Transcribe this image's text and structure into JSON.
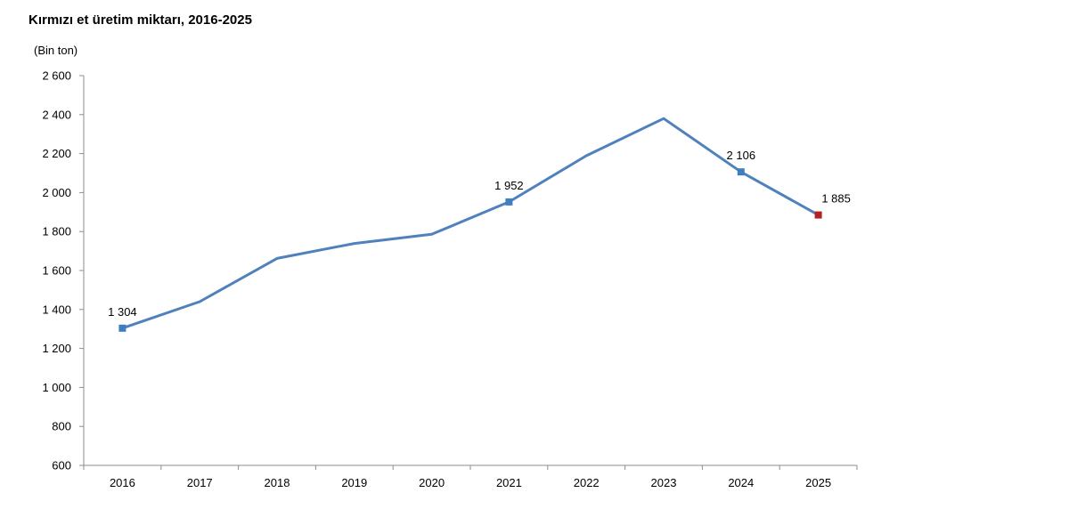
{
  "chart_data": {
    "type": "line",
    "title": "Kırmızı et üretim miktarı, 2016-2025",
    "ylabel": "(Bin ton)",
    "xlabel": "",
    "categories": [
      "2016",
      "2017",
      "2018",
      "2019",
      "2020",
      "2021",
      "2022",
      "2023",
      "2024",
      "2025"
    ],
    "series": [
      {
        "values": [
          1304,
          1440,
          1662,
          1739,
          1786,
          1952,
          2189,
          2380,
          2106,
          1885
        ],
        "color": "#4f81bd"
      }
    ],
    "ylim": [
      600,
      2600
    ],
    "yticks": [
      600,
      800,
      1000,
      1200,
      1400,
      1600,
      1800,
      2000,
      2200,
      2400,
      2600
    ],
    "ytick_labels": [
      "600",
      "800",
      "1 000",
      "1 200",
      "1 400",
      "1 600",
      "1 800",
      "2 000",
      "2 200",
      "2 400",
      "2 600"
    ],
    "data_labels": [
      {
        "category": "2016",
        "text": "1 304"
      },
      {
        "category": "2021",
        "text": "1 952"
      },
      {
        "category": "2024",
        "text": "2 106"
      },
      {
        "category": "2025",
        "text": "1 885"
      }
    ],
    "markers": [
      {
        "category": "2016",
        "color": "#3f7fbf"
      },
      {
        "category": "2021",
        "color": "#3f7fbf"
      },
      {
        "category": "2024",
        "color": "#3f7fbf"
      },
      {
        "category": "2025",
        "color": "#b22222"
      }
    ],
    "grid": false,
    "legend": "none"
  }
}
